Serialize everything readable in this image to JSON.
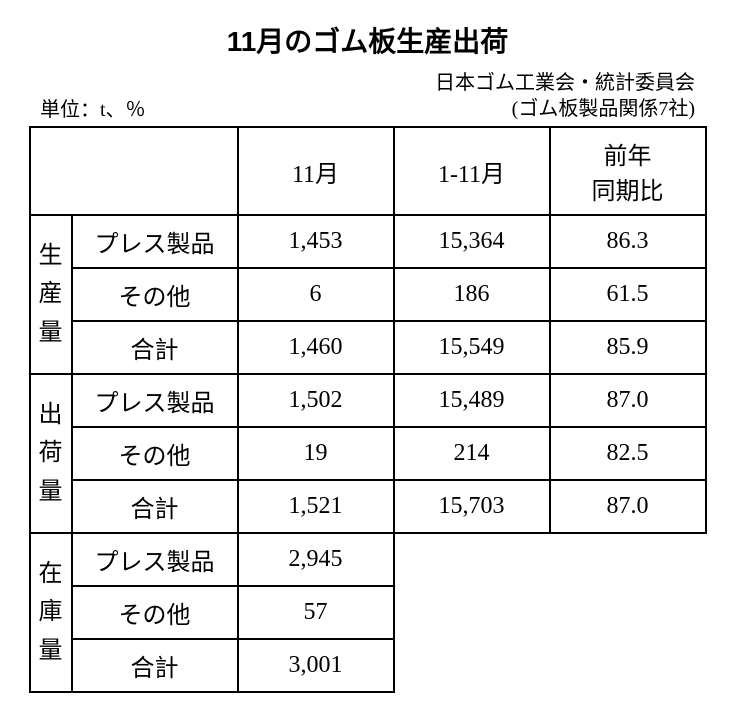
{
  "title": "11月のゴム板生産出荷",
  "unit": "単位：t、％",
  "source_line1": "日本ゴム工業会・統計委員会",
  "source_line2": "(ゴム板製品関係7社)",
  "columns": {
    "blank1": "",
    "blank2": "",
    "c1": "11月",
    "c2": "1-11月",
    "c3": "前年\n同期比"
  },
  "sections": [
    {
      "name": "生産量",
      "rows": [
        {
          "label": "プレス製品",
          "v1": "1,453",
          "v2": "15,364",
          "v3": "86.3"
        },
        {
          "label": "その他",
          "v1": "6",
          "v2": "186",
          "v3": "61.5"
        },
        {
          "label": "合計",
          "v1": "1,460",
          "v2": "15,549",
          "v3": "85.9"
        }
      ]
    },
    {
      "name": "出荷量",
      "rows": [
        {
          "label": "プレス製品",
          "v1": "1,502",
          "v2": "15,489",
          "v3": "87.0"
        },
        {
          "label": "その他",
          "v1": "19",
          "v2": "214",
          "v3": "82.5"
        },
        {
          "label": "合計",
          "v1": "1,521",
          "v2": "15,703",
          "v3": "87.0"
        }
      ]
    },
    {
      "name": "在庫量",
      "rows": [
        {
          "label": "プレス製品",
          "v1": "2,945",
          "v2": "",
          "v3": ""
        },
        {
          "label": "その他",
          "v1": "57",
          "v2": "",
          "v3": ""
        },
        {
          "label": "合計",
          "v1": "3,001",
          "v2": "",
          "v3": ""
        }
      ]
    }
  ],
  "style": {
    "border_color": "#000000",
    "background": "#ffffff",
    "title_fontsize": 28,
    "body_fontsize": 24
  }
}
